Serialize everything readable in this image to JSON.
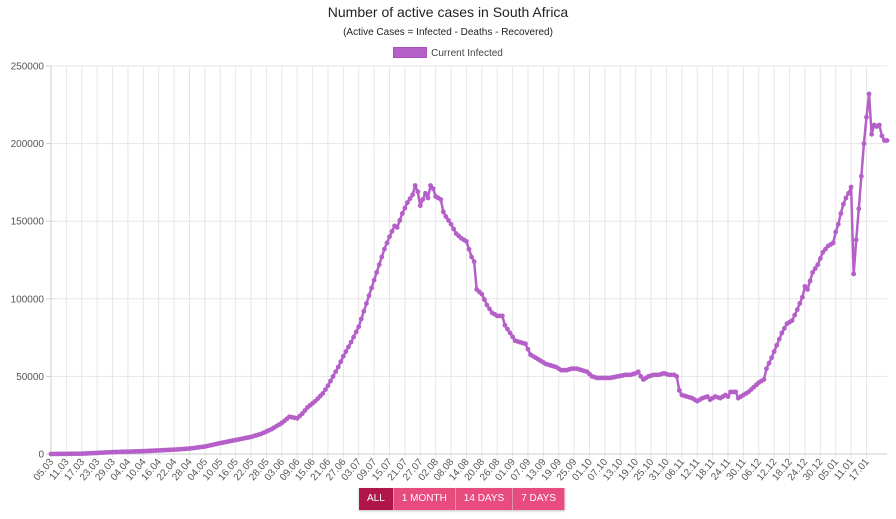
{
  "header": {
    "title": "Number of active cases in South Africa",
    "subtitle": "(Active Cases = Infected - Deaths - Recovered)"
  },
  "colors": {
    "series": "#b55fc9",
    "grid": "#e6e6e6",
    "active_button": "#b0164b",
    "button": "#e84b7e"
  },
  "range_buttons": [
    {
      "label": "ALL",
      "active": true
    },
    {
      "label": "1 MONTH",
      "active": false
    },
    {
      "label": "14 DAYS",
      "active": false
    },
    {
      "label": "7 DAYS",
      "active": false
    }
  ],
  "chart_data": {
    "type": "line",
    "legend_position": "top",
    "grid": true,
    "ylim": [
      0,
      250000
    ],
    "yticks": [
      "0",
      "50000",
      "100000",
      "150000",
      "200000",
      "250000"
    ],
    "ytick_values": [
      0,
      50000,
      100000,
      150000,
      200000,
      250000
    ],
    "xlim": [
      0,
      318
    ],
    "xtick_labels": [
      "05.03",
      "11.03",
      "17.03",
      "23.03",
      "29.03",
      "04.04",
      "10.04",
      "16.04",
      "22.04",
      "28.04",
      "04.05",
      "10.05",
      "16.05",
      "22.05",
      "28.05",
      "03.06",
      "09.06",
      "15.06",
      "21.06",
      "27.06",
      "03.07",
      "09.07",
      "15.07",
      "21.07",
      "27.07",
      "02.08",
      "08.08",
      "14.08",
      "20.08",
      "26.08",
      "01.09",
      "07.09",
      "13.09",
      "19.09",
      "25.09",
      "01.10",
      "07.10",
      "13.10",
      "19.10",
      "25.10",
      "31.10",
      "06.11",
      "12.11",
      "18.11",
      "24.11",
      "30.11",
      "06.12",
      "12.12",
      "18.12",
      "24.12",
      "30.12",
      "05.01",
      "11.01",
      "17.01"
    ],
    "xtick_positions": [
      0,
      6,
      12,
      18,
      24,
      30,
      36,
      42,
      48,
      54,
      60,
      66,
      72,
      78,
      84,
      90,
      96,
      102,
      108,
      114,
      120,
      126,
      132,
      138,
      144,
      150,
      156,
      162,
      168,
      174,
      180,
      186,
      192,
      198,
      204,
      210,
      216,
      222,
      228,
      234,
      240,
      246,
      252,
      258,
      264,
      270,
      276,
      282,
      288,
      294,
      300,
      306,
      312,
      318
    ],
    "series": [
      {
        "name": "Current Infected",
        "points": [
          [
            0,
            0
          ],
          [
            12,
            200
          ],
          [
            24,
            1200
          ],
          [
            36,
            1800
          ],
          [
            48,
            2800
          ],
          [
            54,
            3500
          ],
          [
            60,
            4800
          ],
          [
            66,
            7000
          ],
          [
            72,
            9000
          ],
          [
            78,
            11000
          ],
          [
            82,
            13000
          ],
          [
            86,
            16000
          ],
          [
            90,
            20000
          ],
          [
            93,
            24000
          ],
          [
            96,
            23000
          ],
          [
            98,
            26000
          ],
          [
            100,
            30000
          ],
          [
            103,
            34000
          ],
          [
            106,
            39000
          ],
          [
            108,
            44000
          ],
          [
            110,
            50000
          ],
          [
            112,
            56000
          ],
          [
            114,
            63000
          ],
          [
            117,
            72000
          ],
          [
            120,
            82000
          ],
          [
            122,
            92000
          ],
          [
            124,
            102000
          ],
          [
            126,
            112000
          ],
          [
            128,
            122000
          ],
          [
            130,
            132000
          ],
          [
            132,
            140000
          ],
          [
            134,
            147000
          ],
          [
            135,
            146000
          ],
          [
            137,
            155000
          ],
          [
            139,
            162000
          ],
          [
            141,
            167000
          ],
          [
            142,
            173000
          ],
          [
            143,
            169000
          ],
          [
            144,
            160000
          ],
          [
            146,
            168000
          ],
          [
            147,
            165000
          ],
          [
            148,
            173000
          ],
          [
            149,
            171000
          ],
          [
            150,
            166000
          ],
          [
            152,
            164000
          ],
          [
            153,
            156000
          ],
          [
            154,
            153000
          ],
          [
            156,
            148000
          ],
          [
            158,
            142000
          ],
          [
            160,
            139000
          ],
          [
            162,
            137000
          ],
          [
            163,
            132000
          ],
          [
            164,
            127000
          ],
          [
            165,
            124000
          ],
          [
            166,
            106000
          ],
          [
            168,
            103000
          ],
          [
            170,
            96000
          ],
          [
            172,
            91000
          ],
          [
            174,
            89000
          ],
          [
            176,
            89000
          ],
          [
            177,
            83000
          ],
          [
            179,
            78000
          ],
          [
            181,
            73000
          ],
          [
            183,
            72000
          ],
          [
            185,
            71000
          ],
          [
            187,
            64000
          ],
          [
            189,
            62000
          ],
          [
            191,
            60000
          ],
          [
            193,
            58000
          ],
          [
            195,
            57000
          ],
          [
            197,
            56000
          ],
          [
            199,
            54000
          ],
          [
            201,
            54000
          ],
          [
            203,
            55000
          ],
          [
            205,
            55000
          ],
          [
            207,
            54000
          ],
          [
            209,
            53000
          ],
          [
            211,
            50000
          ],
          [
            213,
            49000
          ],
          [
            215,
            49000
          ],
          [
            218,
            49000
          ],
          [
            221,
            50000
          ],
          [
            224,
            51000
          ],
          [
            226,
            51000
          ],
          [
            228,
            52000
          ],
          [
            229,
            53000
          ],
          [
            230,
            50000
          ],
          [
            231,
            48000
          ],
          [
            233,
            50000
          ],
          [
            235,
            51000
          ],
          [
            237,
            51000
          ],
          [
            239,
            52000
          ],
          [
            241,
            51000
          ],
          [
            243,
            51000
          ],
          [
            244,
            50000
          ],
          [
            245,
            41000
          ],
          [
            246,
            38000
          ],
          [
            248,
            37000
          ],
          [
            250,
            36000
          ],
          [
            252,
            34000
          ],
          [
            254,
            36000
          ],
          [
            256,
            37000
          ],
          [
            257,
            35000
          ],
          [
            259,
            37000
          ],
          [
            261,
            36000
          ],
          [
            263,
            38000
          ],
          [
            264,
            37000
          ],
          [
            265,
            40000
          ],
          [
            267,
            40000
          ],
          [
            268,
            36000
          ],
          [
            270,
            38000
          ],
          [
            272,
            40000
          ],
          [
            274,
            43000
          ],
          [
            276,
            46000
          ],
          [
            278,
            48000
          ],
          [
            279,
            55000
          ],
          [
            281,
            62000
          ],
          [
            283,
            70000
          ],
          [
            285,
            78000
          ],
          [
            287,
            84000
          ],
          [
            289,
            86000
          ],
          [
            291,
            93000
          ],
          [
            293,
            101000
          ],
          [
            294,
            108000
          ],
          [
            295,
            106000
          ],
          [
            297,
            117000
          ],
          [
            299,
            122000
          ],
          [
            301,
            130000
          ],
          [
            303,
            134000
          ],
          [
            305,
            136000
          ],
          [
            306,
            143000
          ],
          [
            307,
            148000
          ],
          [
            308,
            155000
          ],
          [
            309,
            161000
          ],
          [
            310,
            165000
          ],
          [
            311,
            168000
          ],
          [
            312,
            172000
          ],
          [
            313,
            116000
          ],
          [
            314,
            138000
          ],
          [
            315,
            158000
          ],
          [
            316,
            179000
          ],
          [
            317,
            200000
          ],
          [
            318,
            217000
          ],
          [
            319,
            232000
          ],
          [
            320,
            206000
          ],
          [
            321,
            212000
          ],
          [
            322,
            211000
          ],
          [
            323,
            212000
          ],
          [
            324,
            205000
          ],
          [
            325,
            202000
          ],
          [
            326,
            202000
          ]
        ]
      }
    ]
  }
}
